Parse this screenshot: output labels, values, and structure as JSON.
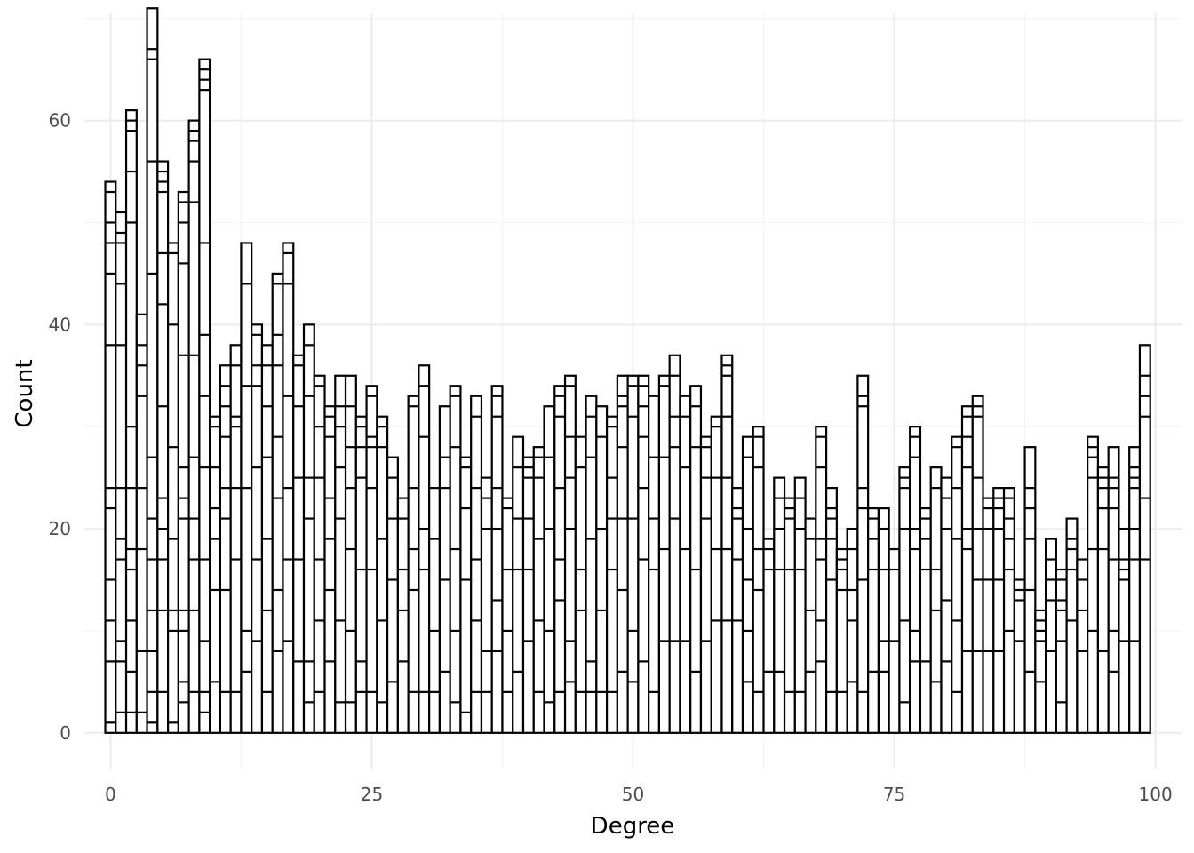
{
  "chart_data": {
    "type": "bar",
    "title": "",
    "xlabel": "Degree",
    "ylabel": "Count",
    "xlim": [
      -2.5,
      102.5
    ],
    "ylim": [
      -3.5,
      70.5
    ],
    "x_ticks": [
      0,
      25,
      50,
      75,
      100
    ],
    "x_tick_labels": [
      "0",
      "25",
      "50",
      "75",
      "100"
    ],
    "y_ticks": [
      0,
      20,
      40,
      60
    ],
    "y_tick_labels": [
      "0",
      "20",
      "40",
      "60"
    ],
    "grid": true,
    "legend": "none",
    "bar_fill": "#ffffff",
    "bar_outline": "#000000",
    "x": [
      0,
      1,
      2,
      3,
      4,
      5,
      6,
      7,
      8,
      9,
      10,
      11,
      12,
      13,
      14,
      15,
      16,
      17,
      18,
      19,
      20,
      21,
      22,
      23,
      24,
      25,
      26,
      27,
      28,
      29,
      30,
      31,
      32,
      33,
      34,
      35,
      36,
      37,
      38,
      39,
      40,
      41,
      42,
      43,
      44,
      45,
      46,
      47,
      48,
      49,
      50,
      51,
      52,
      53,
      54,
      55,
      56,
      57,
      58,
      59,
      60,
      61,
      62,
      63,
      64,
      65,
      66,
      67,
      68,
      69,
      70,
      71,
      72,
      73,
      74,
      75,
      76,
      77,
      78,
      79,
      80,
      81,
      82,
      83,
      84,
      85,
      86,
      87,
      88,
      89,
      90,
      91,
      92,
      93,
      94,
      95,
      96,
      97,
      98,
      99
    ],
    "values": [
      54,
      51,
      61,
      41,
      71,
      56,
      48,
      53,
      60,
      66,
      31,
      36,
      38,
      48,
      40,
      38,
      45,
      48,
      37,
      40,
      35,
      32,
      35,
      35,
      31,
      34,
      31,
      27,
      23,
      33,
      36,
      24,
      32,
      34,
      27,
      33,
      25,
      34,
      23,
      29,
      27,
      28,
      32,
      34,
      35,
      29,
      33,
      32,
      31,
      35,
      35,
      35,
      33,
      35,
      37,
      33,
      34,
      29,
      31,
      37,
      24,
      29,
      30,
      19,
      25,
      23,
      25,
      21,
      30,
      24,
      18,
      20,
      35,
      22,
      22,
      18,
      26,
      30,
      22,
      26,
      25,
      29,
      32,
      33,
      23,
      24,
      24,
      15,
      28,
      12,
      19,
      16,
      21,
      17,
      29,
      26,
      28,
      20,
      28,
      38
    ],
    "stack_breaks": [
      [
        1,
        7,
        11,
        15,
        22,
        24,
        38,
        45,
        48,
        50,
        53
      ],
      [
        2,
        7,
        9,
        17,
        19,
        24,
        38,
        44,
        48,
        49
      ],
      [
        2,
        6,
        11,
        16,
        18,
        24,
        30,
        50,
        55,
        59,
        60
      ],
      [
        2,
        8,
        18,
        24,
        33,
        36,
        38
      ],
      [
        1,
        4,
        8,
        12,
        17,
        21,
        27,
        45,
        56,
        66,
        67
      ],
      [
        4,
        12,
        17,
        20,
        23,
        32,
        42,
        47,
        53,
        54,
        55
      ],
      [
        1,
        10,
        12,
        19,
        28,
        40,
        47,
        48
      ],
      [
        3,
        5,
        10,
        12,
        21,
        23,
        26,
        37,
        46,
        50,
        52
      ],
      [
        4,
        12,
        17,
        21,
        27,
        37,
        52,
        56,
        58,
        59
      ],
      [
        2,
        4,
        9,
        17,
        26,
        33,
        39,
        48,
        63,
        64,
        65
      ],
      [
        5,
        14,
        19,
        22,
        26,
        30
      ],
      [
        4,
        14,
        21,
        24,
        29,
        32,
        34
      ],
      [
        4,
        17,
        24,
        30,
        31,
        36
      ],
      [
        6,
        10,
        24,
        34,
        44
      ],
      [
        9,
        17,
        26,
        34,
        36,
        39
      ],
      [
        4,
        12,
        19,
        27,
        32,
        36
      ],
      [
        8,
        14,
        23,
        29,
        36,
        39,
        44
      ],
      [
        9,
        17,
        24,
        33,
        44,
        47
      ],
      [
        7,
        17,
        25,
        32,
        36
      ],
      [
        3,
        7,
        21,
        25,
        33,
        38
      ],
      [
        4,
        11,
        17,
        25,
        30,
        34
      ],
      [
        7,
        14,
        19,
        23,
        29,
        31
      ],
      [
        3,
        11,
        21,
        26,
        30,
        32
      ],
      [
        3,
        10,
        18,
        24,
        28,
        32
      ],
      [
        4,
        7,
        16,
        25,
        28,
        30
      ],
      [
        4,
        16,
        24,
        28,
        29,
        33
      ],
      [
        3,
        11,
        19,
        28,
        30
      ],
      [
        5,
        15,
        21,
        25
      ],
      [
        7,
        12,
        16,
        21
      ],
      [
        4,
        14,
        18,
        24,
        32
      ],
      [
        4,
        16,
        20,
        29,
        34
      ],
      [
        4,
        10,
        19,
        24
      ],
      [
        6,
        15,
        24,
        27
      ],
      [
        3,
        10,
        18,
        28,
        33
      ],
      [
        2,
        15,
        22,
        26
      ],
      [
        4,
        11,
        17,
        24,
        31
      ],
      [
        4,
        8,
        20,
        23
      ],
      [
        8,
        13,
        20,
        24,
        31,
        33
      ],
      [
        4,
        10,
        16,
        22
      ],
      [
        6,
        16,
        21,
        26
      ],
      [
        9,
        16,
        21,
        25,
        26
      ],
      [
        4,
        11,
        19,
        25,
        27
      ],
      [
        3,
        10,
        20,
        27
      ],
      [
        4,
        13,
        17,
        24,
        31,
        33
      ],
      [
        5,
        9,
        20,
        25,
        29,
        34
      ],
      [
        4,
        12,
        16,
        26,
        29
      ],
      [
        4,
        7,
        19,
        27,
        31
      ],
      [
        4,
        12,
        20,
        29
      ],
      [
        4,
        16,
        21,
        25,
        30
      ],
      [
        6,
        14,
        21,
        28,
        32,
        33
      ],
      [
        5,
        10,
        21,
        31,
        34
      ],
      [
        7,
        17,
        24,
        29,
        32,
        34
      ],
      [
        4,
        16,
        21,
        27,
        33
      ],
      [
        9,
        18,
        27,
        34
      ],
      [
        9,
        21,
        28,
        31,
        35
      ],
      [
        9,
        18,
        26,
        31
      ],
      [
        6,
        16,
        28,
        32
      ],
      [
        9,
        21,
        25,
        28
      ],
      [
        11,
        18,
        25,
        30
      ],
      [
        11,
        18,
        25,
        31,
        35,
        36
      ],
      [
        11,
        17,
        21,
        22
      ],
      [
        5,
        10,
        15,
        20,
        27
      ],
      [
        4,
        14,
        18,
        26,
        29
      ],
      [
        6,
        16,
        18
      ],
      [
        6,
        16,
        20,
        23
      ],
      [
        4,
        16,
        21,
        22
      ],
      [
        4,
        16,
        20,
        23
      ],
      [
        6,
        12,
        19
      ],
      [
        7,
        11,
        17,
        19,
        26,
        29
      ],
      [
        4,
        15,
        19,
        21,
        22
      ],
      [
        4,
        14,
        16,
        17
      ],
      [
        5,
        11,
        14,
        18
      ],
      [
        4,
        15,
        22,
        24,
        32,
        33
      ],
      [
        6,
        16,
        19,
        21
      ],
      [
        6,
        9,
        16,
        20
      ],
      [
        9,
        16
      ],
      [
        3,
        11,
        20,
        24,
        25
      ],
      [
        7,
        10,
        18,
        20,
        27,
        29
      ],
      [
        7,
        16,
        19,
        21
      ],
      [
        5,
        12,
        16,
        24
      ],
      [
        7,
        13,
        20,
        23
      ],
      [
        4,
        11,
        19,
        24,
        28,
        29
      ],
      [
        8,
        18,
        20,
        26,
        29,
        31
      ],
      [
        8,
        15,
        20,
        25,
        31,
        32
      ],
      [
        8,
        15,
        20,
        22
      ],
      [
        8,
        15,
        20,
        22,
        23
      ],
      [
        10,
        16,
        19,
        21,
        23
      ],
      [
        9,
        13,
        14
      ],
      [
        6,
        14,
        19,
        22,
        24
      ],
      [
        5,
        9,
        10,
        11
      ],
      [
        8,
        13,
        15,
        17
      ],
      [
        3,
        9,
        12,
        13,
        15
      ],
      [
        11,
        16,
        18,
        19
      ],
      [
        8,
        12,
        15
      ],
      [
        10,
        18,
        25,
        27,
        28
      ],
      [
        8,
        18,
        22,
        24,
        25
      ],
      [
        6,
        10,
        17,
        22,
        24,
        25
      ],
      [
        9,
        15,
        16,
        17
      ],
      [
        9,
        17,
        20,
        24,
        25,
        26
      ],
      [
        17,
        23,
        31,
        33,
        35
      ]
    ]
  }
}
